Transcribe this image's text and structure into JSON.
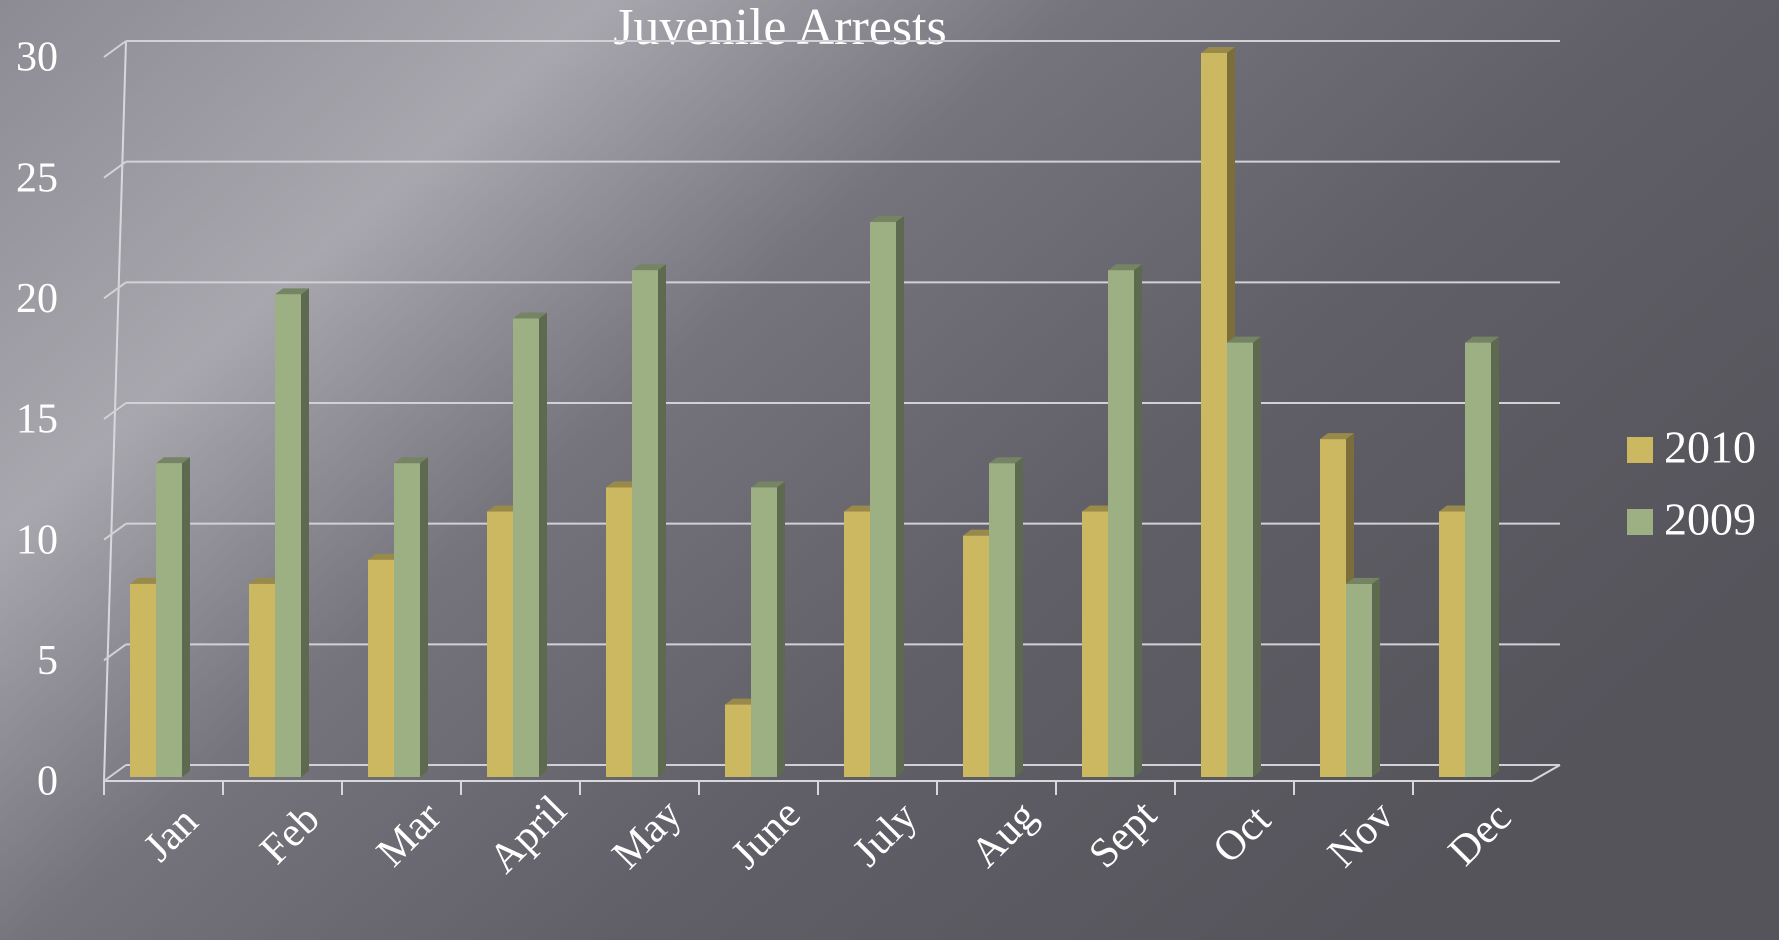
{
  "chart_data": {
    "type": "bar3d",
    "title": "Juvenile Arrests",
    "categories": [
      "Jan",
      "Feb",
      "Mar",
      "April",
      "May",
      "June",
      "July",
      "Aug",
      "Sept",
      "Oct",
      "Nov",
      "Dec"
    ],
    "series": [
      {
        "name": "2010",
        "color": "#cdb862",
        "values": [
          8,
          8,
          9,
          11,
          12,
          3,
          11,
          10,
          11,
          30,
          14,
          11
        ]
      },
      {
        "name": "2009",
        "color": "#9cb084",
        "values": [
          13,
          20,
          13,
          19,
          21,
          12,
          23,
          13,
          21,
          18,
          8,
          18
        ]
      }
    ],
    "ylim": [
      0,
      30
    ],
    "yticks": [
      0,
      5,
      10,
      15,
      20,
      25,
      30
    ],
    "grid": true,
    "legend": "right"
  }
}
